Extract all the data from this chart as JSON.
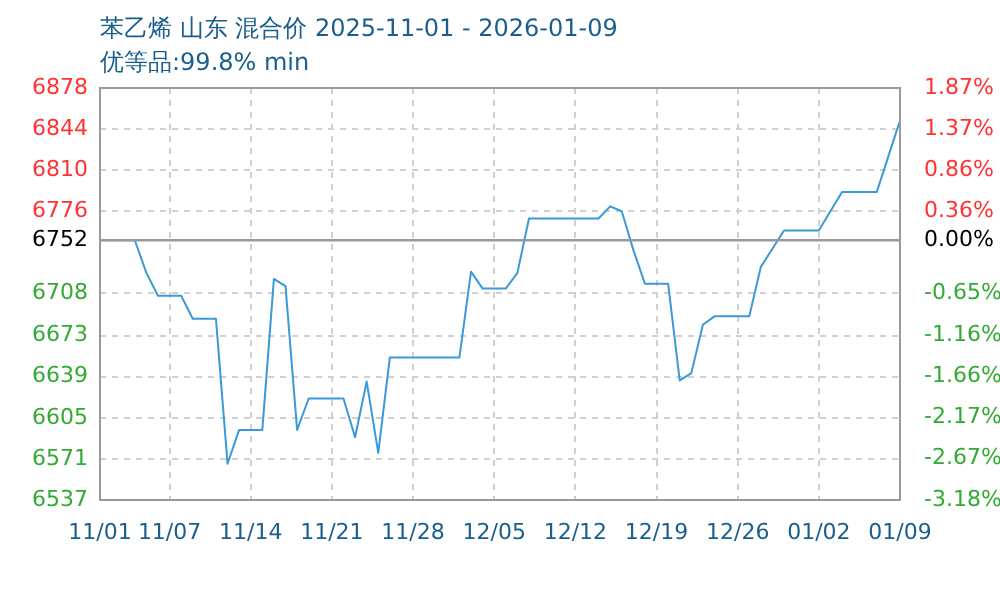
{
  "chart_data": {
    "type": "line",
    "title": "苯乙烯 山东 混合价 2025-11-01 - 2026-01-09",
    "subtitle": "优等品:99.8% min",
    "x": [
      "2025-11-01",
      "2025-11-04",
      "2025-11-05",
      "2025-11-06",
      "2025-11-08",
      "2025-11-09",
      "2025-11-11",
      "2025-11-12",
      "2025-11-13",
      "2025-11-15",
      "2025-11-16",
      "2025-11-17",
      "2025-11-18",
      "2025-11-19",
      "2025-11-22",
      "2025-11-23",
      "2025-11-24",
      "2025-11-25",
      "2025-11-26",
      "2025-12-02",
      "2025-12-03",
      "2025-12-04",
      "2025-12-06",
      "2025-12-07",
      "2025-12-08",
      "2025-12-14",
      "2025-12-15",
      "2025-12-16",
      "2025-12-17",
      "2025-12-18",
      "2025-12-20",
      "2025-12-21",
      "2025-12-22",
      "2025-12-23",
      "2025-12-24",
      "2025-12-27",
      "2025-12-28",
      "2025-12-30",
      "2026-01-02",
      "2026-01-04",
      "2026-01-07",
      "2026-01-09"
    ],
    "series": [
      {
        "color": "#3a9ad9",
        "values": [
          6752,
          6752,
          6725,
          6706,
          6706,
          6687,
          6687,
          6567,
          6595,
          6595,
          6720,
          6714,
          6595,
          6621,
          6621,
          6589,
          6635,
          6576,
          6655,
          6655,
          6726,
          6712,
          6712,
          6725,
          6770,
          6770,
          6780,
          6776,
          6744,
          6716,
          6716,
          6636,
          6642,
          6682,
          6689,
          6689,
          6730,
          6760,
          6760,
          6792,
          6792,
          6851
        ]
      }
    ],
    "xlim": [
      "2025-11-01",
      "2026-01-09"
    ],
    "xticks": [
      {
        "value": "2025-11-01",
        "label": "11/01"
      },
      {
        "value": "2025-11-07",
        "label": "11/07"
      },
      {
        "value": "2025-11-14",
        "label": "11/14"
      },
      {
        "value": "2025-11-21",
        "label": "11/21"
      },
      {
        "value": "2025-11-28",
        "label": "11/28"
      },
      {
        "value": "2025-12-05",
        "label": "12/05"
      },
      {
        "value": "2025-12-12",
        "label": "12/12"
      },
      {
        "value": "2025-12-19",
        "label": "12/19"
      },
      {
        "value": "2025-12-26",
        "label": "12/26"
      },
      {
        "value": "2026-01-02",
        "label": "01/02"
      },
      {
        "value": "2026-01-09",
        "label": "01/09"
      }
    ],
    "ylim": [
      6537,
      6878
    ],
    "yticks": [
      6537,
      6571,
      6605,
      6639,
      6673,
      6708,
      6752,
      6776,
      6810,
      6844,
      6878
    ],
    "y2lim": [
      -3.18,
      1.87
    ],
    "y2ticks": [
      {
        "value": -3.18,
        "label": "-3.18%"
      },
      {
        "value": -2.67,
        "label": "-2.67%"
      },
      {
        "value": -2.17,
        "label": "-2.17%"
      },
      {
        "value": -1.66,
        "label": "-1.66%"
      },
      {
        "value": -1.16,
        "label": "-1.16%"
      },
      {
        "value": -0.65,
        "label": "-0.65%"
      },
      {
        "value": 0,
        "label": "0.00%"
      },
      {
        "value": 0.36,
        "label": "0.36%"
      },
      {
        "value": 0.86,
        "label": "0.86%"
      },
      {
        "value": 1.37,
        "label": "1.37%"
      },
      {
        "value": 1.87,
        "label": "1.87%"
      }
    ],
    "ref_lines": [
      {
        "axis": "y",
        "value": 6752,
        "color": "#999999",
        "line_style": "solid"
      }
    ],
    "grid": true,
    "legend": false,
    "marker": "none",
    "line_style": "solid"
  }
}
